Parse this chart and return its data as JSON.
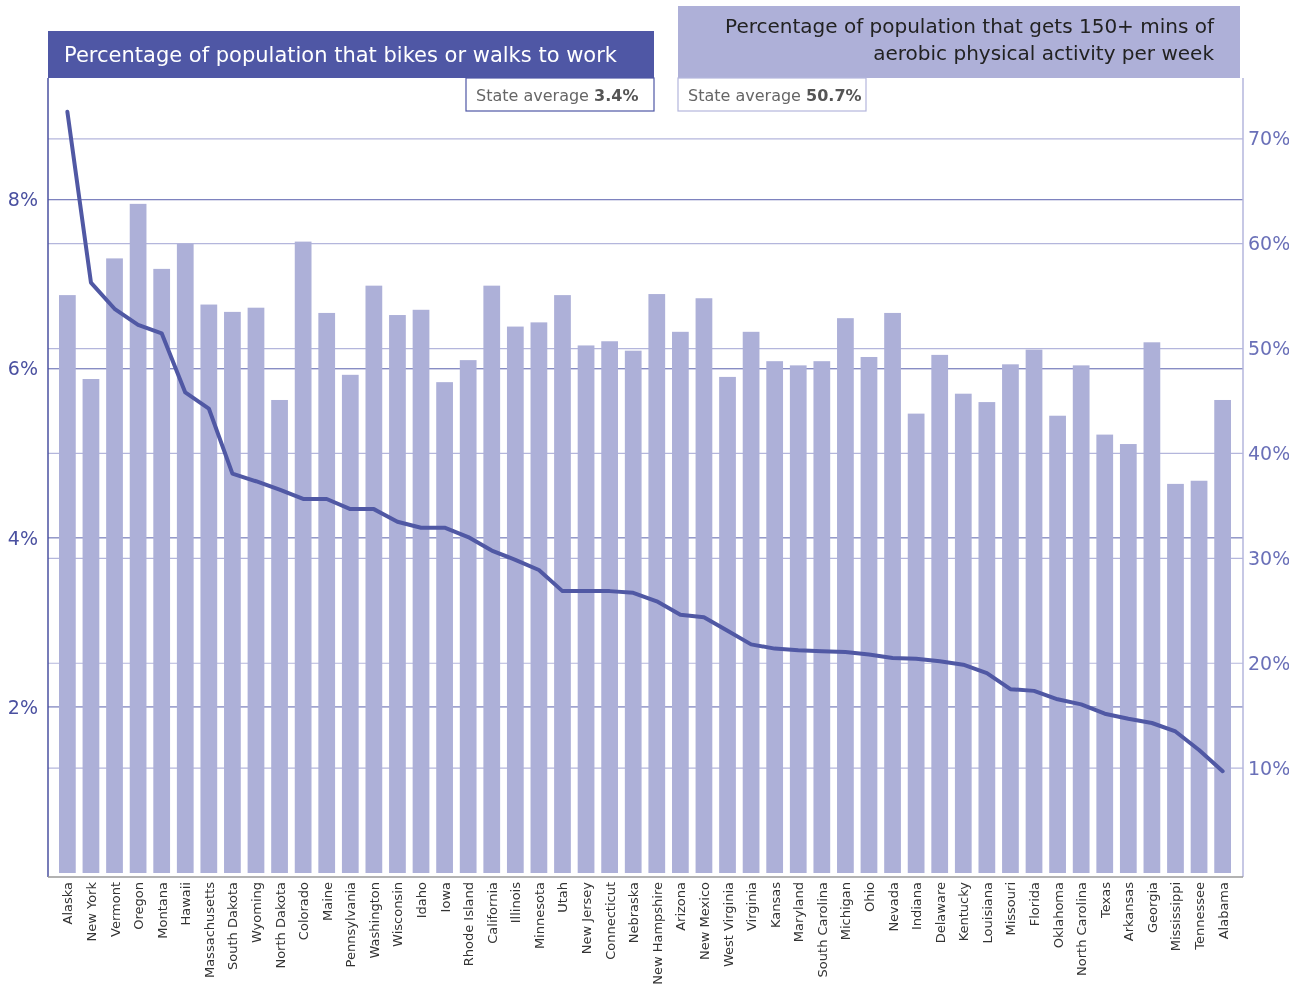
{
  "chart_data": {
    "type": "bar",
    "ylabel": "Percentage of population that bikes or walks to work",
    "y2label": "Percentage of population that gets 150+ mins of aerobic physical activity per week",
    "annotations": [
      "State average 3.4%",
      "State average 50.7%"
    ],
    "categories": [
      "Alaska",
      "New York",
      "Vermont",
      "Oregon",
      "Montana",
      "Hawaii",
      "Massachusetts",
      "South Dakota",
      "Wyoming",
      "North Dakota",
      "Colorado",
      "Maine",
      "Pennsylvania",
      "Washington",
      "Wisconsin",
      "Idaho",
      "Iowa",
      "Rhode Island",
      "California",
      "Illinois",
      "Minnesota",
      "Utah",
      "New Jersey",
      "Connecticut",
      "Nebraska",
      "New Hampshire",
      "Arizona",
      "New Mexico",
      "West Virginia",
      "Virginia",
      "Kansas",
      "Maryland",
      "South Carolina",
      "Michigan",
      "Ohio",
      "Nevada",
      "Indiana",
      "Delaware",
      "Kentucky",
      "Louisiana",
      "Missouri",
      "Florida",
      "Oklahoma",
      "North Carolina",
      "Texas",
      "Arkansas",
      "Georgia",
      "Mississippi",
      "Tennessee",
      "Alabama"
    ],
    "series": [
      {
        "axis": "y2",
        "color": "#adb0d8",
        "values": [
          55.1,
          47.1,
          58.6,
          63.8,
          57.6,
          60.0,
          54.2,
          53.5,
          53.9,
          45.1,
          60.2,
          53.4,
          47.5,
          56.0,
          53.2,
          53.7,
          46.8,
          48.9,
          56.0,
          52.1,
          52.5,
          55.1,
          50.3,
          50.7,
          49.8,
          55.2,
          51.6,
          54.8,
          47.3,
          51.6,
          48.8,
          48.4,
          48.8,
          52.9,
          49.2,
          53.4,
          43.8,
          49.4,
          45.7,
          44.9,
          48.5,
          49.9,
          43.6,
          48.4,
          41.8,
          40.9,
          50.6,
          37.1,
          37.4,
          45.1
        ]
      },
      {
        "type": "line",
        "axis": "y",
        "color": "#5058a4",
        "values": [
          9.04,
          7.02,
          6.71,
          6.52,
          6.42,
          5.72,
          5.53,
          4.76,
          4.67,
          4.57,
          4.46,
          4.46,
          4.34,
          4.34,
          4.19,
          4.12,
          4.12,
          4.01,
          3.85,
          3.74,
          3.62,
          3.37,
          3.37,
          3.37,
          3.35,
          3.25,
          3.09,
          3.06,
          2.9,
          2.74,
          2.69,
          2.67,
          2.66,
          2.65,
          2.62,
          2.58,
          2.57,
          2.54,
          2.5,
          2.4,
          2.21,
          2.19,
          2.09,
          2.03,
          1.92,
          1.86,
          1.81,
          1.71,
          1.49,
          1.24
        ]
      }
    ],
    "ylim": [
      0,
      9.44
    ],
    "yticks": [
      {
        "value": 2,
        "label": "2%"
      },
      {
        "value": 4,
        "label": "4%"
      },
      {
        "value": 6,
        "label": "6%"
      },
      {
        "value": 8,
        "label": "8%"
      }
    ],
    "y2lim": [
      0,
      75.8
    ],
    "y2ticks": [
      {
        "value": 10,
        "label": "10%"
      },
      {
        "value": 20,
        "label": "20%"
      },
      {
        "value": 30,
        "label": "30%"
      },
      {
        "value": 40,
        "label": "40%"
      },
      {
        "value": 50,
        "label": "50%"
      },
      {
        "value": 60,
        "label": "60%"
      },
      {
        "value": 70,
        "label": "70%"
      }
    ],
    "grid": true,
    "marker": "none",
    "line_style": "solid"
  }
}
